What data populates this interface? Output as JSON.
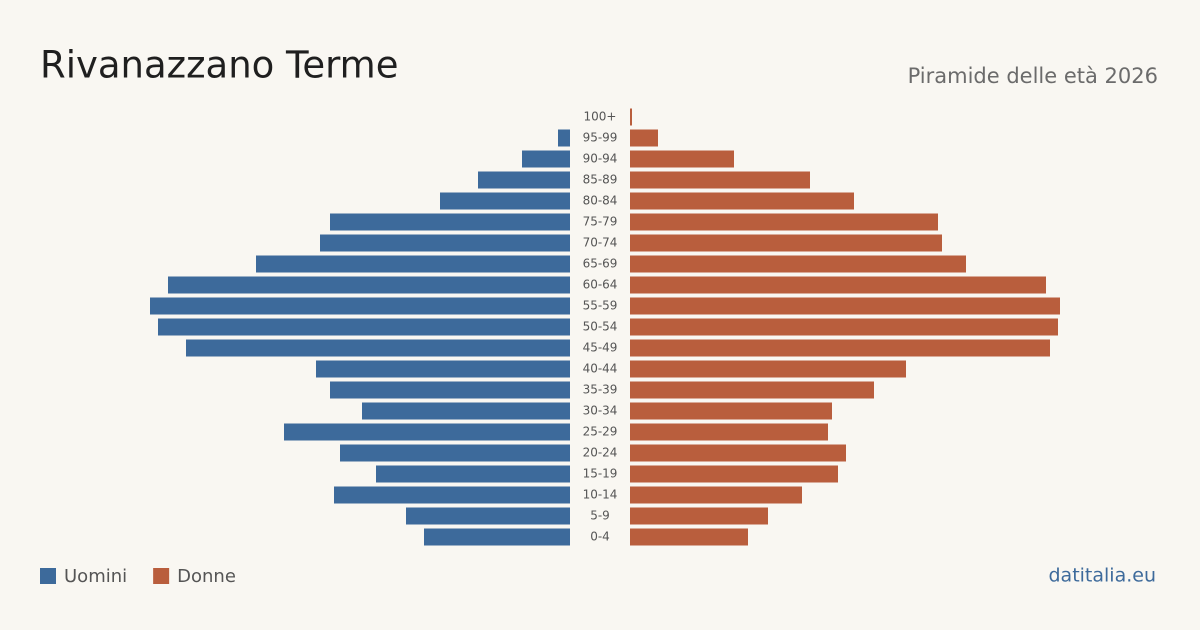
{
  "chart_data": {
    "type": "pyramid",
    "title": "Rivanazzano Terme",
    "subtitle": "Piramide delle età 2026",
    "source": "datitalia.eu",
    "categories": [
      "100+",
      "95-99",
      "90-94",
      "85-89",
      "80-84",
      "75-79",
      "70-74",
      "65-69",
      "60-64",
      "55-59",
      "50-54",
      "45-49",
      "40-44",
      "35-39",
      "30-34",
      "25-29",
      "20-24",
      "15-19",
      "10-14",
      "5-9",
      "0-4"
    ],
    "series": [
      {
        "name": "Uomini",
        "color": "#3d6a9b",
        "values": [
          0,
          6,
          24,
          46,
          65,
          120,
          125,
          157,
          201,
          210,
          206,
          192,
          127,
          120,
          104,
          143,
          115,
          97,
          118,
          82,
          73
        ]
      },
      {
        "name": "Donne",
        "color": "#b95e3d",
        "values": [
          1,
          14,
          52,
          90,
          112,
          154,
          156,
          168,
          208,
          215,
          214,
          210,
          138,
          122,
          101,
          99,
          108,
          104,
          86,
          69,
          59
        ]
      }
    ],
    "xlim": [
      0,
      215
    ]
  }
}
